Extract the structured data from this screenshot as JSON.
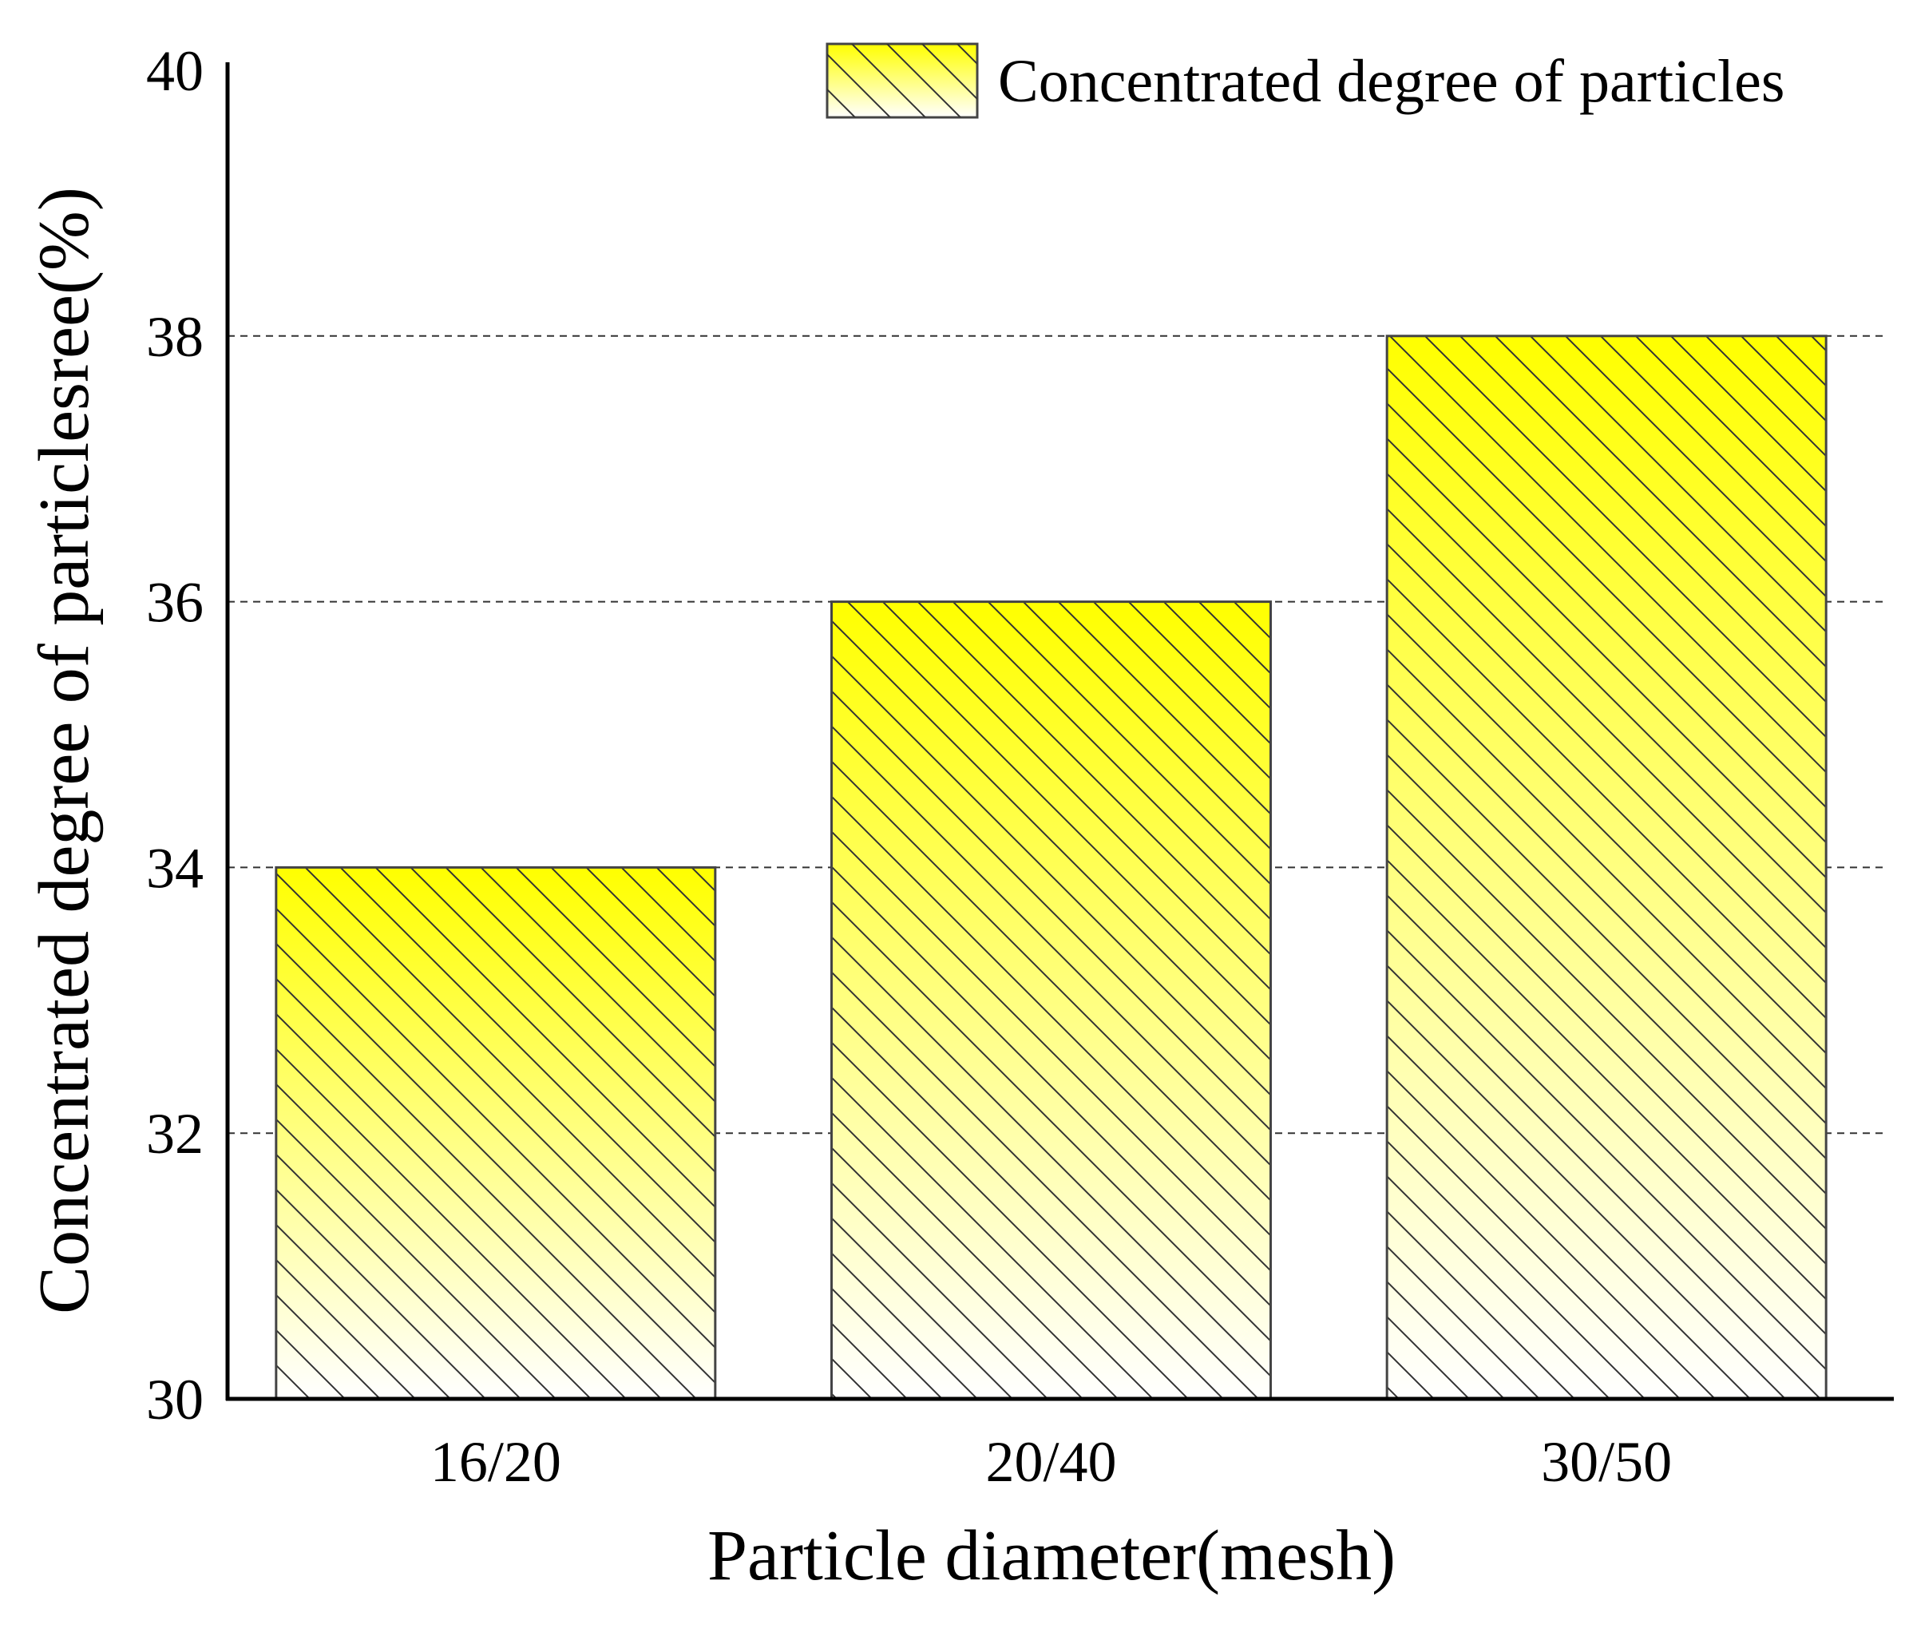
{
  "chart_data": {
    "type": "bar",
    "title": "",
    "categories": [
      "16/20",
      "20/40",
      "30/50"
    ],
    "series": [
      {
        "name": "Concentrated degree of particles",
        "values": [
          34,
          36,
          38
        ]
      }
    ],
    "xlabel": "Particle diameter(mesh)",
    "ylabel": "Concentrated degree of particlesree(%)",
    "ylim": [
      30,
      40
    ],
    "yticks": [
      30,
      32,
      34,
      36,
      38,
      40
    ],
    "ytick_labels": [
      "30",
      "32",
      "34",
      "36",
      "38",
      "40"
    ],
    "grid": "horizontal dashed",
    "legend": {
      "position": "top-right",
      "entries": [
        "Concentrated degree of particles"
      ]
    },
    "colors": {
      "bar_top": "#ffff00",
      "bar_bottom": "#ffffff",
      "hatch": "#333333",
      "edge": "#444444",
      "axis": "#000000",
      "grid": "#333333"
    }
  }
}
